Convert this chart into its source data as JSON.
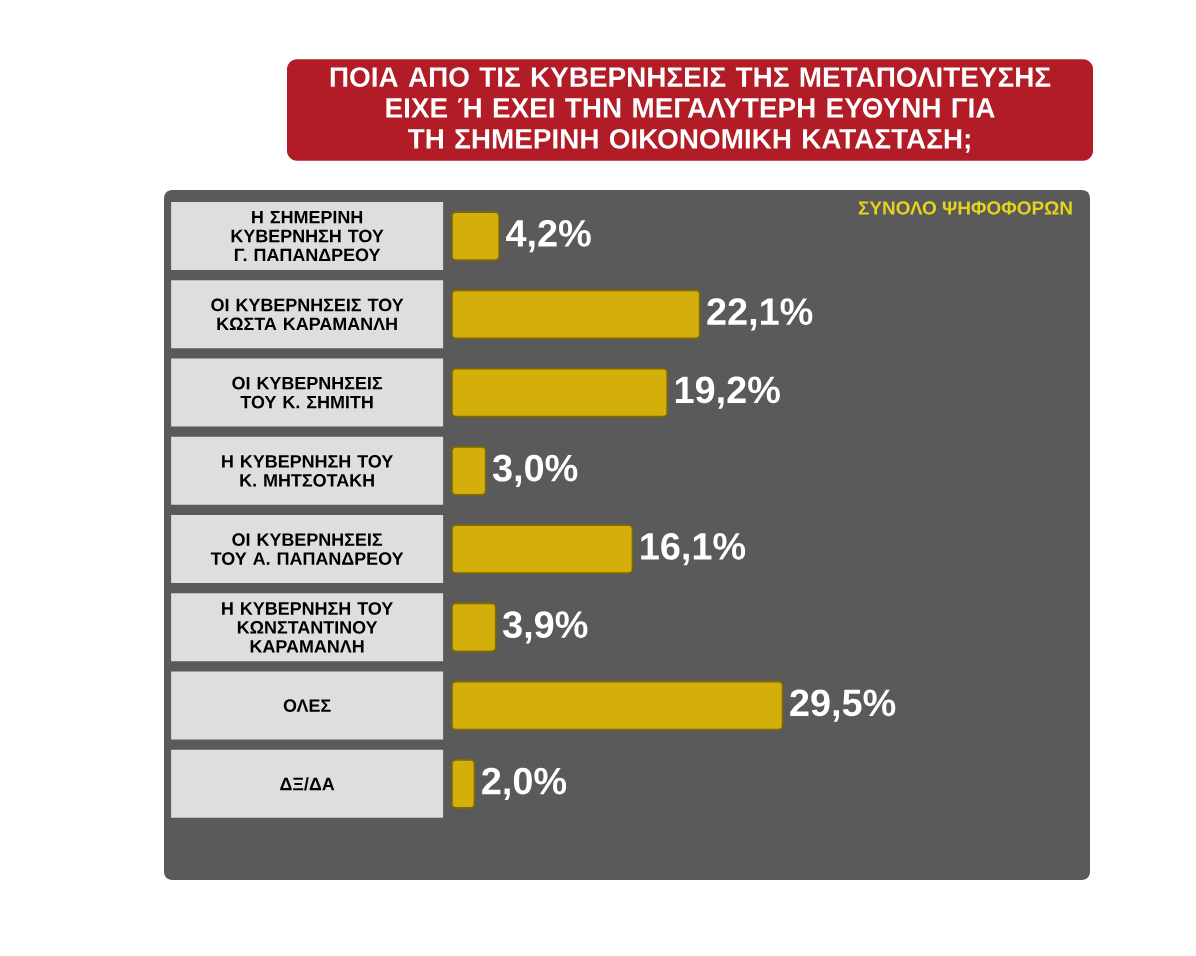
{
  "chart_data": {
    "type": "bar",
    "orientation": "horizontal",
    "title": "ΠΟΙΑ ΑΠΟ ΤΙΣ ΚΥΒΕΡΝΗΣΕΙΣ ΤΗΣ ΜΕΤΑΠΟΛΙΤΕΥΣΗΣ ΕΙΧΕ Ή ΕΧΕΙ ΤΗΝ ΜΕΓΑΛΥΤΕΡΗ ΕΥΘΥΝΗ ΓΙΑ ΤΗ ΣΗΜΕΡΙΝΗ ΟΙΚΟΝΟΜΙΚΗ ΚΑΤΑΣΤΑΣΗ;",
    "subtitle": "ΣΥΝΟΛΟ ΨΗΦΟΦΟΡΩΝ",
    "categories": [
      "Η ΣΗΜΕΡΙΝΗ ΚΥΒΕΡΝΗΣΗ ΤΟΥ Γ. ΠΑΠΑΝΔΡΕΟΥ",
      "ΟΙ ΚΥΒΕΡΝΗΣΕΙΣ ΤΟΥ ΚΩΣΤΑ ΚΑΡΑΜΑΝΛΗ",
      "ΟΙ ΚΥΒΕΡΝΗΣΕΙΣ ΤΟΥ Κ. ΣΗΜΙΤΗ",
      "Η ΚΥΒΕΡΝΗΣΗ ΤΟΥ Κ. ΜΗΤΣΟΤΑΚΗ",
      "ΟΙ ΚΥΒΕΡΝΗΣΕΙΣ ΤΟΥ Α. ΠΑΠΑΝΔΡΕΟΥ",
      "Η ΚΥΒΕΡΝΗΣΗ ΤΟΥ ΚΩΝΣΤΑΝΤΙΝΟΥ ΚΑΡΑΜΑΝΛΗ",
      "ΟΛΕΣ",
      "ΔΞ/ΔΑ"
    ],
    "values": [
      4.2,
      22.1,
      19.2,
      3.0,
      16.1,
      3.9,
      29.5,
      2.0
    ],
    "color": "#d4ae0a",
    "value_labels": [
      "4,2%",
      "22,1%",
      "19,2%",
      "3,0%",
      "16,1%",
      "3,9%",
      "29,5%",
      "2,0%"
    ]
  }
}
